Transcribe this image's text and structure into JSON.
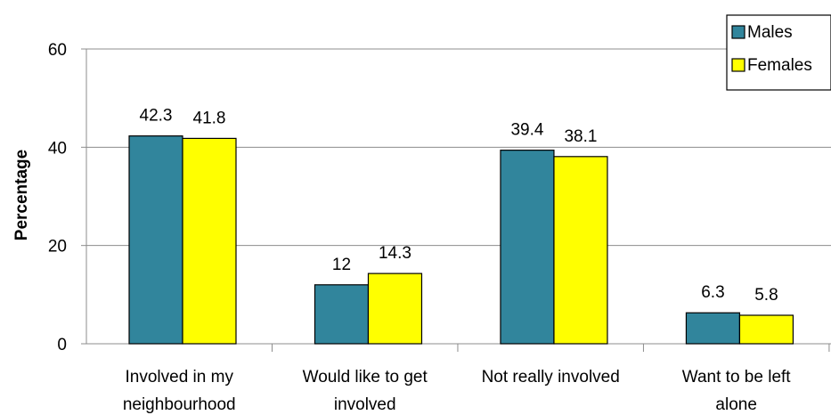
{
  "chart_data": {
    "type": "bar",
    "title": "",
    "xlabel": "",
    "ylabel": "Percentage",
    "ylim": [
      0,
      60
    ],
    "yticks": [
      0,
      20,
      40,
      60
    ],
    "grid": true,
    "legend_position": "top-right",
    "categories": [
      [
        "Involved in my",
        "neighbourhood"
      ],
      [
        "Would like to get",
        "involved"
      ],
      [
        "Not really involved"
      ],
      [
        "Want to be left",
        "alone"
      ]
    ],
    "series": [
      {
        "name": "Males",
        "color": "#31859c",
        "values": [
          42.3,
          12,
          39.4,
          6.3
        ],
        "labels": [
          "42.3",
          "12",
          "39.4",
          "6.3"
        ]
      },
      {
        "name": "Females",
        "color": "#ffff00",
        "values": [
          41.8,
          14.3,
          38.1,
          5.8
        ],
        "labels": [
          "41.8",
          "14.3",
          "38.1",
          "5.8"
        ]
      }
    ]
  }
}
